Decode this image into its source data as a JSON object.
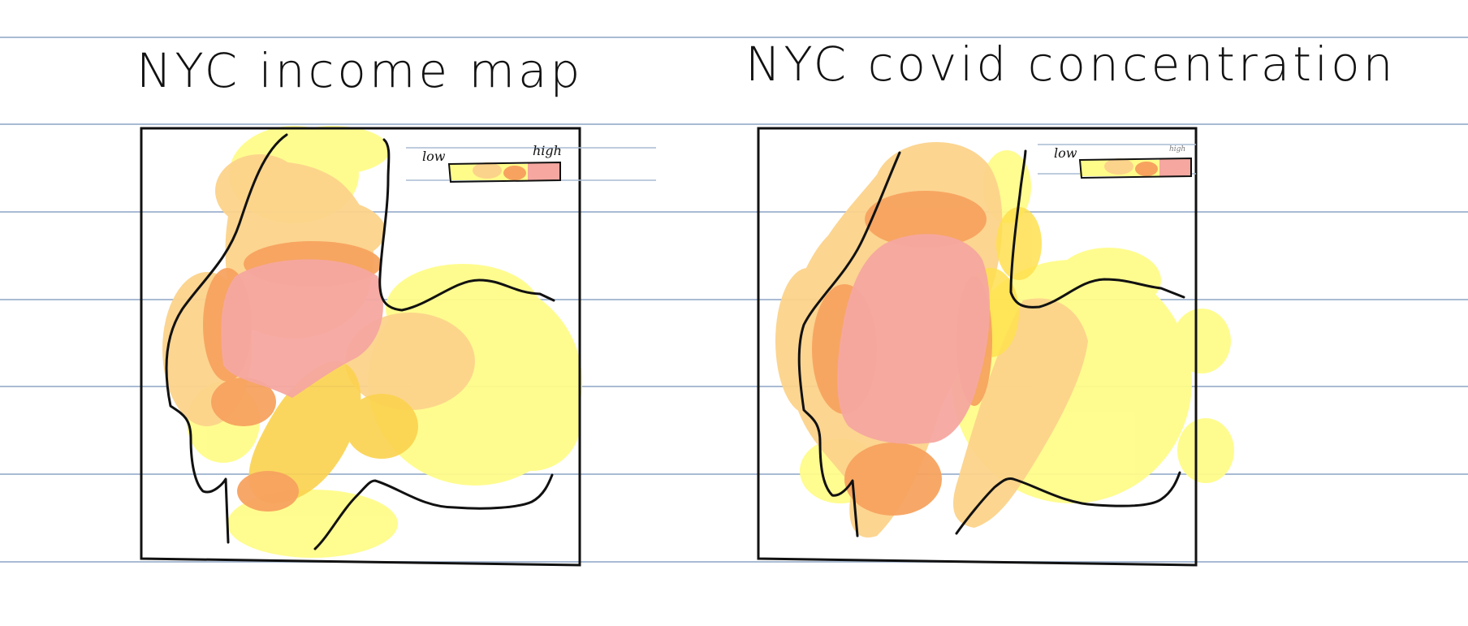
{
  "maps": [
    {
      "title": "NYC income map",
      "legend": {
        "low_label": "low",
        "high_label": "high"
      },
      "scale_colors": [
        "#fffc8a",
        "#fcd38b",
        "#f7a35f",
        "#f5a7a0"
      ]
    },
    {
      "title": "NYC covid concentration",
      "legend": {
        "low_label": "low",
        "high_label": "high"
      },
      "scale_colors": [
        "#fffc8a",
        "#fcd38b",
        "#f7a35f",
        "#f5a7a0"
      ]
    }
  ],
  "colors": {
    "ruled_line": "#a9bbd4",
    "ink": "#111111"
  }
}
